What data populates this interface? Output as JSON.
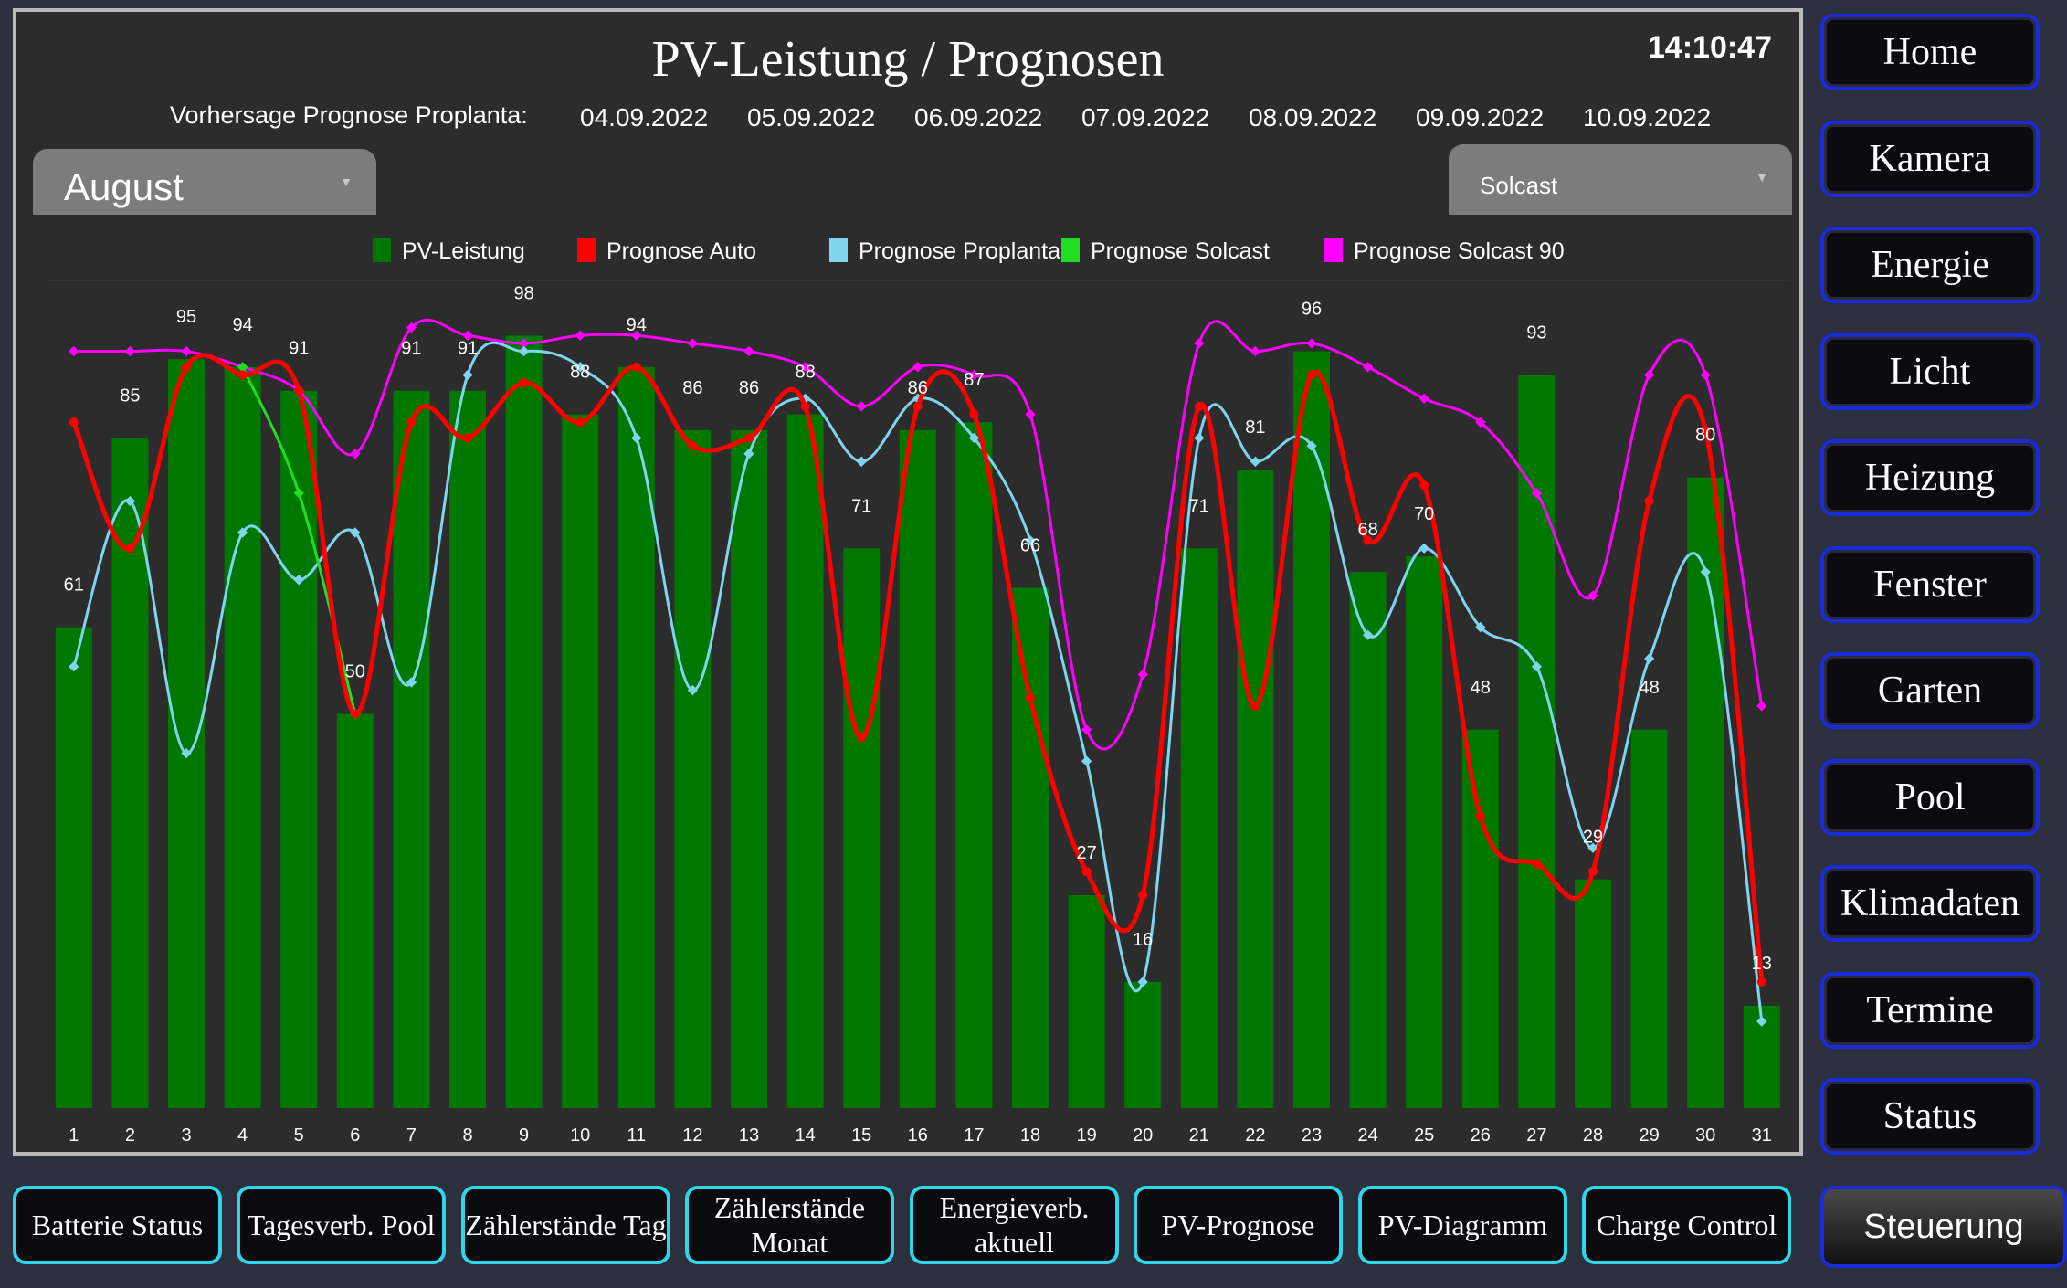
{
  "header": {
    "title": "PV-Leistung / Prognosen",
    "clock": "14:10:47",
    "forecast_label": "Vorhersage Prognose Proplanta:",
    "forecast_dates": [
      "04.09.2022",
      "05.09.2022",
      "06.09.2022",
      "07.09.2022",
      "08.09.2022",
      "09.09.2022",
      "10.09.2022"
    ]
  },
  "month_select": {
    "value": "August"
  },
  "source_select": {
    "value": "Solcast"
  },
  "nav": {
    "items": [
      "Home",
      "Kamera",
      "Energie",
      "Licht",
      "Heizung",
      "Fenster",
      "Garten",
      "Pool",
      "Klimadaten",
      "Termine",
      "Status"
    ]
  },
  "bottom_nav": {
    "items": [
      "Batterie Status",
      "Tagesverb. Pool",
      "Zählerstände Tag",
      "Zählerstände Monat",
      "Energieverb. aktuell",
      "PV-Prognose",
      "PV-Diagramm",
      "Charge Control"
    ],
    "active": "Steuerung"
  },
  "colors": {
    "prognose_auto": "#ff0000",
    "prognose_proplanta": "#7fd4f0",
    "prognose_solcast": "#22dd22",
    "prognose_solcast_90": "#ff00ff",
    "pv_leistung": "#007800"
  },
  "chart_data": {
    "type": "bar",
    "categories": [
      "1",
      "2",
      "3",
      "4",
      "5",
      "6",
      "7",
      "8",
      "9",
      "10",
      "11",
      "12",
      "13",
      "14",
      "15",
      "16",
      "17",
      "18",
      "19",
      "20",
      "21",
      "22",
      "23",
      "24",
      "25",
      "26",
      "27",
      "28",
      "29",
      "30",
      "31"
    ],
    "ylim": [
      0,
      100
    ],
    "legend_position": "top",
    "series": [
      {
        "name": "PV-Leistung",
        "kind": "bar",
        "color": "#007800",
        "values": [
          61,
          85,
          95,
          94,
          91,
          50,
          91,
          91,
          98,
          88,
          94,
          86,
          86,
          88,
          71,
          86,
          87,
          66,
          27,
          16,
          71,
          81,
          96,
          68,
          70,
          48,
          93,
          29,
          48,
          80,
          13
        ],
        "labels": [
          61,
          85,
          95,
          94,
          91,
          50,
          91,
          91,
          98,
          88,
          94,
          86,
          86,
          88,
          71,
          86,
          87,
          66,
          27,
          16,
          71,
          81,
          96,
          68,
          70,
          48,
          93,
          29,
          48,
          80,
          13
        ]
      },
      {
        "name": "Prognose Auto",
        "kind": "line",
        "color": "#ff0000",
        "values": [
          87,
          71,
          94,
          93,
          91,
          50,
          87,
          85,
          92,
          87,
          94,
          84,
          85,
          89,
          47,
          89,
          88,
          52,
          30,
          27,
          89,
          51,
          93,
          72,
          79,
          37,
          31,
          30,
          77,
          86,
          16
        ]
      },
      {
        "name": "Prognose Proplanta",
        "kind": "line",
        "color": "#7fd4f0",
        "values": [
          56,
          77,
          45,
          73,
          67,
          73,
          54,
          93,
          96,
          94,
          85,
          53,
          83,
          90,
          82,
          90,
          85,
          72,
          44,
          16,
          85,
          82,
          84,
          60,
          71,
          61,
          56,
          33,
          57,
          68,
          11
        ]
      },
      {
        "name": "Prognose Solcast",
        "kind": "line",
        "color": "#22dd22",
        "values": [
          null,
          null,
          null,
          94,
          78,
          50,
          null,
          null,
          null,
          null,
          null,
          null,
          null,
          null,
          null,
          null,
          null,
          null,
          null,
          null,
          null,
          null,
          null,
          null,
          null,
          null,
          null,
          null,
          null,
          null,
          null
        ]
      },
      {
        "name": "Prognose Solcast 90",
        "kind": "line",
        "color": "#ff00ff",
        "values": [
          96,
          96,
          96,
          94,
          91,
          83,
          99,
          98,
          97,
          98,
          98,
          97,
          96,
          94,
          89,
          94,
          93,
          88,
          48,
          55,
          97,
          96,
          97,
          94,
          90,
          87,
          78,
          65,
          93,
          93,
          51
        ]
      }
    ]
  }
}
